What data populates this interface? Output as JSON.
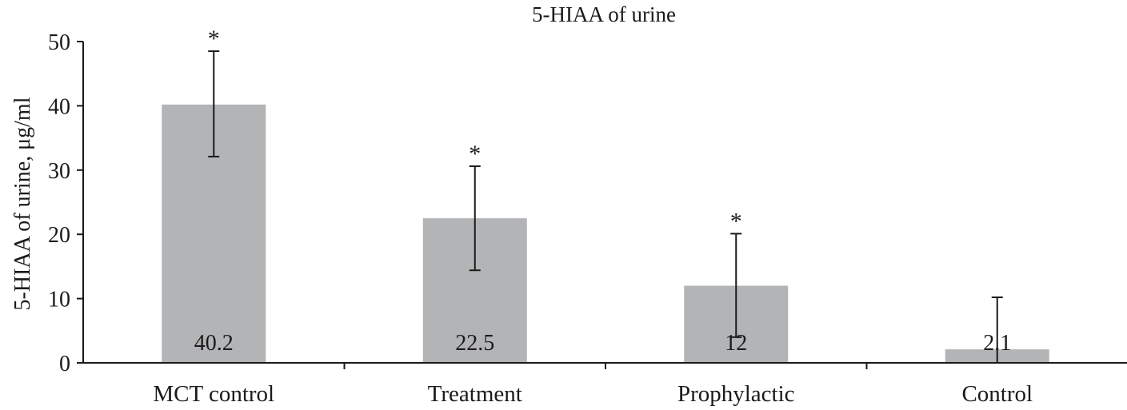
{
  "chart_data": {
    "type": "bar",
    "title": "5-HIAA of urine",
    "xlabel": "",
    "ylabel": "5-HIAA of urine, μg/ml",
    "categories": [
      "MCT control",
      "Treatment",
      "Prophylactic",
      "Control"
    ],
    "values": [
      40.2,
      22.5,
      12,
      2.1
    ],
    "value_labels": [
      "40.2",
      "22.5",
      "12",
      "2.1"
    ],
    "error_upper": [
      48.5,
      30.6,
      20.1,
      10.2
    ],
    "error_lower": [
      32.1,
      14.4,
      4.0,
      0.0
    ],
    "significance": [
      "*",
      "*",
      "*",
      ""
    ],
    "ylim": [
      0,
      50
    ],
    "yticks": [
      0,
      10,
      20,
      30,
      40,
      50
    ],
    "ytick_labels": [
      "0",
      "10",
      "20",
      "30",
      "40",
      "50"
    ],
    "grid": false,
    "legend": "none",
    "colors": {
      "bar": "#b3b4b6",
      "axis": "#1a1a1a",
      "text": "#1a1a1a"
    }
  }
}
